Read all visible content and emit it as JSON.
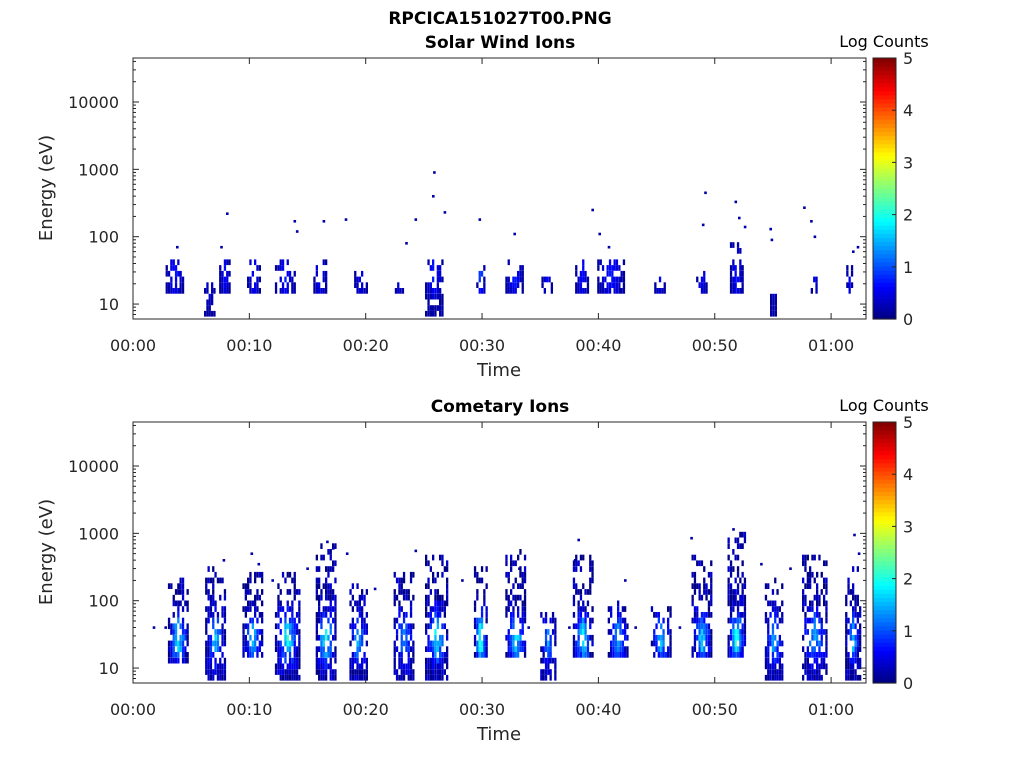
{
  "figure_title": "RPCICA151027T00.PNG",
  "chart_data": [
    {
      "type": "heatmap",
      "title": "Solar Wind Ions",
      "xlabel": "Time",
      "ylabel": "Energy (eV)",
      "y_scale": "log",
      "ylim": [
        6,
        45000
      ],
      "xlim_minutes": [
        0,
        63
      ],
      "x_tick_labels": [
        "00:00",
        "00:10",
        "00:20",
        "00:30",
        "00:40",
        "00:50",
        "01:00"
      ],
      "x_tick_minutes": [
        0,
        10,
        20,
        30,
        40,
        50,
        60
      ],
      "y_tick_labels": [
        "10",
        "100",
        "1000",
        "10000"
      ],
      "y_tick_values": [
        10,
        100,
        1000,
        10000
      ],
      "colorbar": {
        "label": "Log Counts",
        "ticks": [
          "0",
          "1",
          "2",
          "3",
          "4",
          "5"
        ],
        "range": [
          0,
          5
        ],
        "colormap": "jet"
      },
      "bursts": [
        {
          "t": 3.5,
          "w": 1.4,
          "lo": 12,
          "hi": 45,
          "peak": 0.6,
          "spread": 0.25
        },
        {
          "t": 6.5,
          "w": 0.8,
          "lo": 6,
          "hi": 20,
          "peak": 0.5,
          "spread": 0.1
        },
        {
          "t": 7.8,
          "w": 0.8,
          "lo": 14,
          "hi": 45,
          "peak": 0.5,
          "spread": 0.2
        },
        {
          "t": 10.3,
          "w": 1.0,
          "lo": 12,
          "hi": 45,
          "peak": 0.6,
          "spread": 0.2
        },
        {
          "t": 13.0,
          "w": 1.6,
          "lo": 12,
          "hi": 40,
          "peak": 0.6,
          "spread": 0.2
        },
        {
          "t": 16.0,
          "w": 1.0,
          "lo": 12,
          "hi": 40,
          "peak": 0.6,
          "spread": 0.2
        },
        {
          "t": 19.5,
          "w": 1.0,
          "lo": 12,
          "hi": 30,
          "peak": 0.5,
          "spread": 0.1
        },
        {
          "t": 22.8,
          "w": 0.6,
          "lo": 12,
          "hi": 20,
          "peak": 0.5,
          "spread": 0.1
        },
        {
          "t": 25.8,
          "w": 1.4,
          "lo": 6,
          "hi": 45,
          "peak": 0.7,
          "spread": 0.3
        },
        {
          "t": 29.8,
          "w": 0.6,
          "lo": 12,
          "hi": 40,
          "peak": 1.1,
          "spread": 0.2
        },
        {
          "t": 32.7,
          "w": 1.4,
          "lo": 14,
          "hi": 45,
          "peak": 0.7,
          "spread": 0.3
        },
        {
          "t": 35.5,
          "w": 0.8,
          "lo": 12,
          "hi": 25,
          "peak": 0.5,
          "spread": 0.1
        },
        {
          "t": 38.5,
          "w": 1.0,
          "lo": 14,
          "hi": 40,
          "peak": 0.6,
          "spread": 0.2
        },
        {
          "t": 41.0,
          "w": 2.2,
          "lo": 14,
          "hi": 45,
          "peak": 0.6,
          "spread": 0.2
        },
        {
          "t": 45.2,
          "w": 0.8,
          "lo": 12,
          "hi": 25,
          "peak": 0.5,
          "spread": 0.1
        },
        {
          "t": 48.8,
          "w": 0.8,
          "lo": 12,
          "hi": 30,
          "peak": 0.5,
          "spread": 0.1
        },
        {
          "t": 51.8,
          "w": 1.0,
          "lo": 14,
          "hi": 80,
          "peak": 0.6,
          "spread": 0.2
        },
        {
          "t": 55.0,
          "w": 0.5,
          "lo": 6,
          "hi": 20,
          "peak": 0.5,
          "spread": 0.1
        },
        {
          "t": 58.5,
          "w": 0.5,
          "lo": 12,
          "hi": 25,
          "peak": 0.5,
          "spread": 0.1
        },
        {
          "t": 61.5,
          "w": 0.4,
          "lo": 12,
          "hi": 45,
          "peak": 0.5,
          "spread": 0.1
        }
      ],
      "scatter": [
        [
          3.8,
          70
        ],
        [
          7.6,
          70
        ],
        [
          8.1,
          220
        ],
        [
          13.9,
          170
        ],
        [
          14.1,
          120
        ],
        [
          16.4,
          170
        ],
        [
          18.3,
          180
        ],
        [
          23.5,
          80
        ],
        [
          24.3,
          180
        ],
        [
          25.9,
          900
        ],
        [
          25.8,
          400
        ],
        [
          26.8,
          230
        ],
        [
          29.8,
          180
        ],
        [
          32.8,
          110
        ],
        [
          39.5,
          250
        ],
        [
          40.1,
          110
        ],
        [
          40.9,
          70
        ],
        [
          49.2,
          450
        ],
        [
          49.0,
          150
        ],
        [
          51.8,
          330
        ],
        [
          52.1,
          190
        ],
        [
          52.6,
          140
        ],
        [
          54.9,
          90
        ],
        [
          54.8,
          130
        ],
        [
          57.7,
          270
        ],
        [
          58.3,
          170
        ],
        [
          58.6,
          100
        ],
        [
          61.9,
          60
        ],
        [
          62.3,
          70
        ]
      ]
    },
    {
      "type": "heatmap",
      "title": "Cometary Ions",
      "xlabel": "Time",
      "ylabel": "Energy (eV)",
      "y_scale": "log",
      "ylim": [
        6,
        45000
      ],
      "xlim_minutes": [
        0,
        63
      ],
      "x_tick_labels": [
        "00:00",
        "00:10",
        "00:20",
        "00:30",
        "00:40",
        "00:50",
        "01:00"
      ],
      "x_tick_minutes": [
        0,
        10,
        20,
        30,
        40,
        50,
        60
      ],
      "y_tick_labels": [
        "10",
        "100",
        "1000",
        "10000"
      ],
      "y_tick_values": [
        10,
        100,
        1000,
        10000
      ],
      "colorbar": {
        "label": "Log Counts",
        "ticks": [
          "0",
          "1",
          "2",
          "3",
          "4",
          "5"
        ],
        "range": [
          0,
          5
        ],
        "colormap": "jet"
      },
      "bursts": [
        {
          "t": 3.8,
          "w": 1.6,
          "lo": 10,
          "hi": 200,
          "peak": 1.9,
          "spread": 1.0
        },
        {
          "t": 7.0,
          "w": 1.6,
          "lo": 6,
          "hi": 300,
          "peak": 1.4,
          "spread": 0.9
        },
        {
          "t": 10.2,
          "w": 1.6,
          "lo": 12,
          "hi": 250,
          "peak": 1.5,
          "spread": 0.8
        },
        {
          "t": 13.2,
          "w": 2.0,
          "lo": 6,
          "hi": 250,
          "peak": 1.8,
          "spread": 0.9
        },
        {
          "t": 16.5,
          "w": 1.6,
          "lo": 6,
          "hi": 600,
          "peak": 1.9,
          "spread": 1.0
        },
        {
          "t": 19.3,
          "w": 1.4,
          "lo": 6,
          "hi": 150,
          "peak": 1.5,
          "spread": 0.9
        },
        {
          "t": 23.2,
          "w": 1.6,
          "lo": 6,
          "hi": 250,
          "peak": 1.3,
          "spread": 0.9
        },
        {
          "t": 26.0,
          "w": 1.8,
          "lo": 6,
          "hi": 400,
          "peak": 1.8,
          "spread": 1.0
        },
        {
          "t": 29.8,
          "w": 1.0,
          "lo": 12,
          "hi": 300,
          "peak": 2.3,
          "spread": 1.0
        },
        {
          "t": 32.8,
          "w": 1.6,
          "lo": 12,
          "hi": 500,
          "peak": 1.8,
          "spread": 1.0
        },
        {
          "t": 35.6,
          "w": 1.2,
          "lo": 6,
          "hi": 60,
          "peak": 1.2,
          "spread": 0.9
        },
        {
          "t": 38.6,
          "w": 1.6,
          "lo": 12,
          "hi": 400,
          "peak": 1.8,
          "spread": 1.0
        },
        {
          "t": 41.6,
          "w": 1.6,
          "lo": 12,
          "hi": 100,
          "peak": 1.5,
          "spread": 0.8
        },
        {
          "t": 45.3,
          "w": 1.6,
          "lo": 12,
          "hi": 80,
          "peak": 1.4,
          "spread": 0.8
        },
        {
          "t": 48.8,
          "w": 1.6,
          "lo": 12,
          "hi": 400,
          "peak": 1.6,
          "spread": 1.0
        },
        {
          "t": 51.8,
          "w": 1.4,
          "lo": 12,
          "hi": 900,
          "peak": 2.0,
          "spread": 1.0
        },
        {
          "t": 55.0,
          "w": 1.4,
          "lo": 6,
          "hi": 200,
          "peak": 1.5,
          "spread": 0.8
        },
        {
          "t": 58.5,
          "w": 2.0,
          "lo": 6,
          "hi": 400,
          "peak": 1.4,
          "spread": 1.0
        },
        {
          "t": 61.8,
          "w": 1.2,
          "lo": 6,
          "hi": 300,
          "peak": 1.5,
          "spread": 0.9
        }
      ],
      "scatter": [
        [
          7.8,
          400
        ],
        [
          10.2,
          500
        ],
        [
          10.8,
          350
        ],
        [
          12.0,
          200
        ],
        [
          15.0,
          300
        ],
        [
          16.7,
          750
        ],
        [
          17.2,
          600
        ],
        [
          18.4,
          500
        ],
        [
          20.8,
          150
        ],
        [
          24.3,
          550
        ],
        [
          28.3,
          200
        ],
        [
          33.2,
          300
        ],
        [
          38.0,
          400
        ],
        [
          38.3,
          800
        ],
        [
          42.3,
          200
        ],
        [
          48.0,
          850
        ],
        [
          51.6,
          1150
        ],
        [
          54.0,
          350
        ],
        [
          56.5,
          300
        ],
        [
          62.0,
          950
        ],
        [
          62.4,
          500
        ],
        [
          1.8,
          40
        ],
        [
          2.8,
          40
        ],
        [
          34.0,
          40
        ],
        [
          37.5,
          40
        ],
        [
          43.2,
          40
        ],
        [
          47.0,
          40
        ]
      ]
    }
  ]
}
